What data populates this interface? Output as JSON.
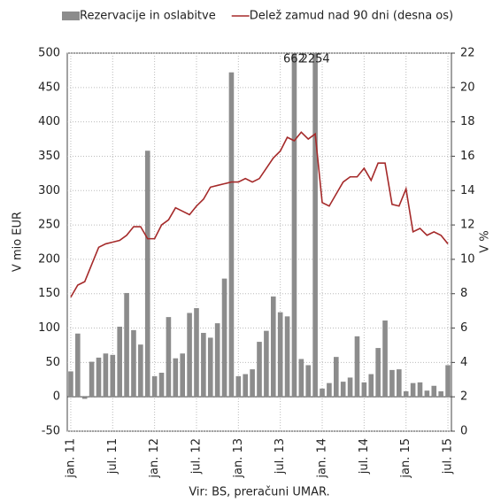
{
  "chart_data": {
    "type": "bar-line",
    "y_label": "V mio EUR",
    "y2_label": "V %",
    "source": "Vir: BS, preračuni UMAR.",
    "categories": [
      "jan. 11",
      null,
      null,
      null,
      null,
      null,
      "jul. 11",
      null,
      null,
      null,
      null,
      null,
      "jan. 12",
      null,
      null,
      null,
      null,
      null,
      "jul. 12",
      null,
      null,
      null,
      null,
      null,
      "jan. 13",
      null,
      null,
      null,
      null,
      null,
      "jul. 13",
      null,
      null,
      null,
      null,
      null,
      "jan. 14",
      null,
      null,
      null,
      null,
      null,
      "jul. 14",
      null,
      null,
      null,
      null,
      null,
      "jan. 15",
      null,
      null,
      null,
      null,
      null,
      "jul. 15"
    ],
    "series": [
      {
        "name": "Rezervacije in oslabitve",
        "type": "bar",
        "color": "#8c8c8c",
        "values": [
          37,
          92,
          -3,
          51,
          57,
          63,
          61,
          102,
          151,
          97,
          76,
          358,
          30,
          35,
          116,
          56,
          63,
          122,
          129,
          93,
          86,
          107,
          172,
          472,
          30,
          33,
          40,
          80,
          96,
          146,
          123,
          117,
          662,
          55,
          46,
          2254,
          12,
          20,
          58,
          22,
          28,
          88,
          21,
          33,
          71,
          111,
          39,
          40,
          8,
          20,
          21,
          9,
          16,
          8,
          46
        ],
        "value_labels": [
          null,
          null,
          null,
          null,
          null,
          null,
          null,
          null,
          null,
          null,
          null,
          null,
          null,
          null,
          null,
          null,
          null,
          null,
          null,
          null,
          null,
          null,
          null,
          null,
          null,
          null,
          null,
          null,
          null,
          null,
          null,
          null,
          "662",
          null,
          null,
          "2254",
          null,
          null,
          null,
          null,
          null,
          null,
          null,
          null,
          null,
          null,
          null,
          null,
          null,
          null,
          null,
          null,
          null,
          null,
          null
        ]
      },
      {
        "name": "Delež zamud nad 90 dni (desna os)",
        "type": "line",
        "axis": "y2",
        "color": "#a52a2a",
        "values": [
          7.8,
          8.5,
          8.7,
          9.7,
          10.7,
          10.9,
          11.0,
          11.1,
          11.4,
          11.9,
          11.9,
          11.2,
          11.2,
          12.0,
          12.3,
          13.0,
          12.8,
          12.6,
          13.1,
          13.5,
          14.2,
          14.3,
          14.4,
          14.5,
          14.5,
          14.7,
          14.5,
          14.7,
          15.3,
          15.9,
          16.3,
          17.1,
          16.9,
          17.4,
          17.0,
          17.3,
          13.3,
          13.1,
          13.8,
          14.5,
          14.8,
          14.8,
          15.3,
          14.6,
          15.6,
          15.6,
          13.2,
          13.1,
          14.1,
          11.6,
          11.8,
          11.4,
          11.6,
          11.4,
          10.9
        ]
      }
    ],
    "ylim": [
      -50,
      500
    ],
    "yticks": [
      -50,
      0,
      50,
      100,
      150,
      200,
      250,
      300,
      350,
      400,
      450,
      500
    ],
    "y2lim": [
      0,
      22
    ],
    "y2ticks": [
      0,
      2,
      4,
      6,
      8,
      10,
      12,
      14,
      16,
      18,
      20,
      22
    ],
    "grid": true
  }
}
